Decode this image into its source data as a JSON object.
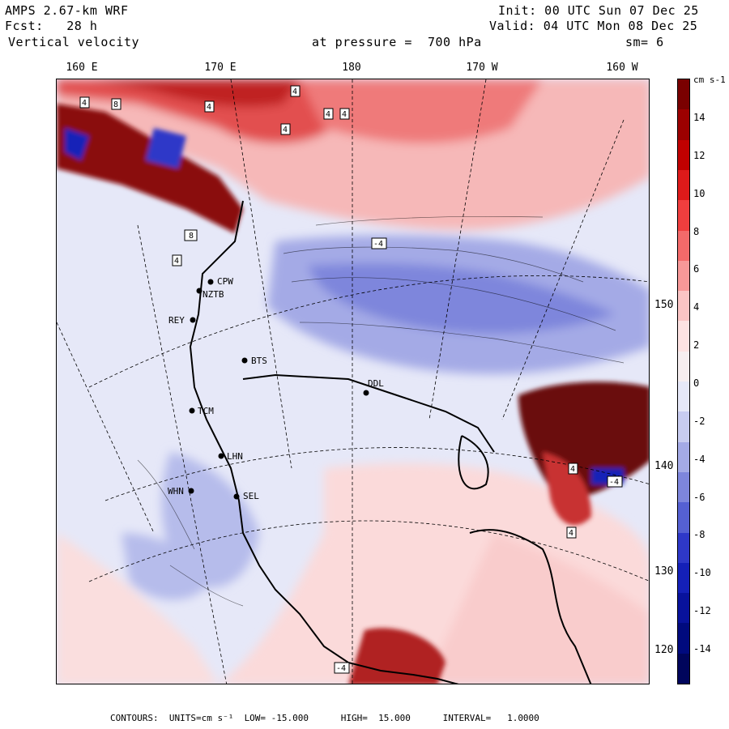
{
  "header": {
    "model": "AMPS 2.67-km WRF",
    "fcst": "Fcst:   28 h",
    "field": "Vertical velocity",
    "init": "Init: 00 UTC Sun 07 Dec 25",
    "valid": "Valid: 04 UTC Mon 08 Dec 25",
    "pressure": "at pressure =  700 hPa",
    "smooth": "sm= 6"
  },
  "map": {
    "longitude_labels": [
      "160 E",
      "170 E",
      "180",
      "170 W",
      "160 W"
    ],
    "latitude_labels": [
      "150 W",
      "140 W",
      "130 W",
      "120 W"
    ],
    "stations": [
      "CPW",
      "NZTB",
      "REY",
      "BTS",
      "DDL",
      "TCM",
      "LHN",
      "WHN",
      "SEL"
    ],
    "contour_labels": [
      "4",
      "8",
      "4",
      "4",
      "4",
      "4",
      "4",
      "8",
      "4",
      "-4",
      "4",
      "-4",
      "4",
      "-4"
    ]
  },
  "colorbar": {
    "unit_label": "cm s-1",
    "tick_labels": [
      "14",
      "12",
      "10",
      "8",
      "6",
      "4",
      "2",
      "0",
      "-2",
      "-4",
      "-6",
      "-8",
      "-10",
      "-12",
      "-14"
    ],
    "colors": [
      "#7a0000",
      "#9c0000",
      "#c00000",
      "#de1a1a",
      "#f03e3e",
      "#f46a6a",
      "#f79898",
      "#fac4c4",
      "#fde2e2",
      "#f6eef0",
      "#e6e8f8",
      "#c8ccf0",
      "#a4aae6",
      "#7e86dc",
      "#5560d2",
      "#2e38c8",
      "#1420b8",
      "#08129c",
      "#000a7e",
      "#00055c"
    ]
  },
  "footer": {
    "contours": "CONTOURS:  UNITS=cm s⁻¹  LOW= -15.000      HIGH=  15.000      INTERVAL=   1.0000"
  }
}
